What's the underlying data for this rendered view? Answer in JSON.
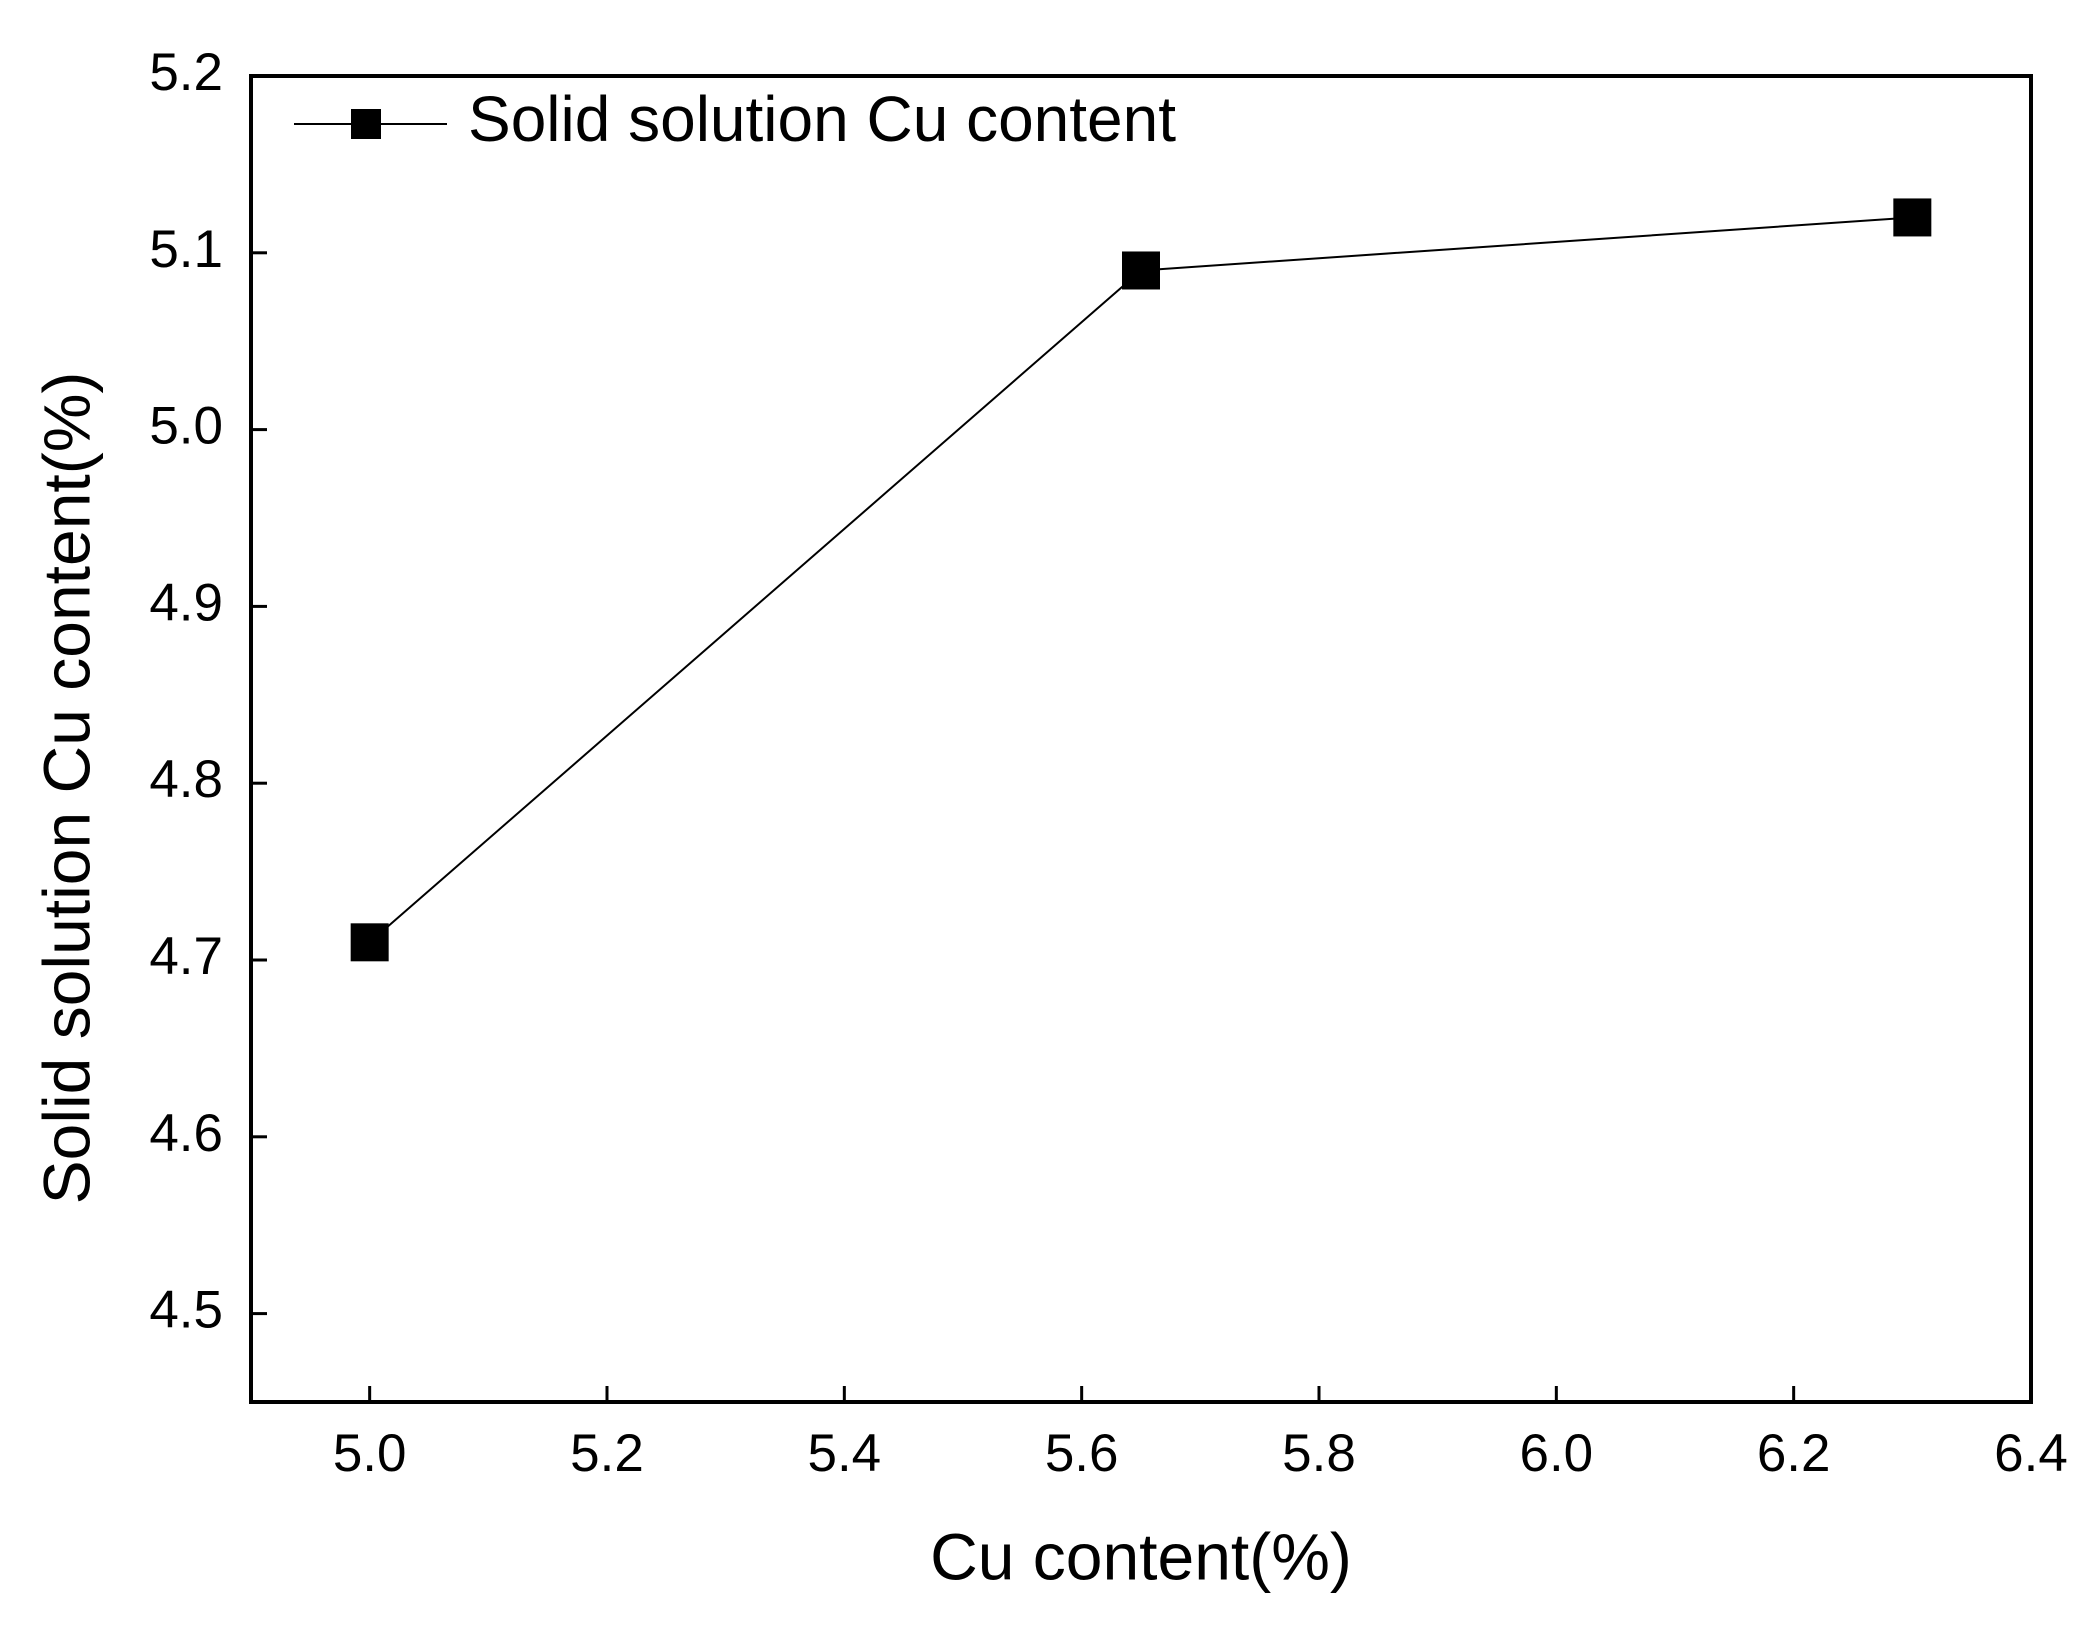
{
  "chart_data": {
    "type": "line",
    "xlabel": "Cu content(%)",
    "ylabel": "Solid solution Cu content(%)",
    "x": [
      5.0,
      5.65,
      6.3
    ],
    "series": [
      {
        "name": "Solid solution Cu content",
        "color": "#000000",
        "values": [
          4.71,
          5.09,
          5.12
        ]
      }
    ],
    "xlim": [
      4.9,
      6.4
    ],
    "xticks": [
      {
        "value": 5,
        "label": "5.0"
      },
      5.2,
      5.4,
      5.6,
      5.8,
      {
        "value": 6,
        "label": "6.0"
      },
      6.2,
      6.4
    ],
    "ylim": [
      4.45,
      5.2
    ],
    "yticks": [
      4.5,
      4.6,
      4.7,
      4.8,
      4.9,
      {
        "value": 5,
        "label": "5.0"
      },
      5.1,
      5.2
    ],
    "grid": false,
    "legend": "upper left",
    "marker": "square"
  }
}
